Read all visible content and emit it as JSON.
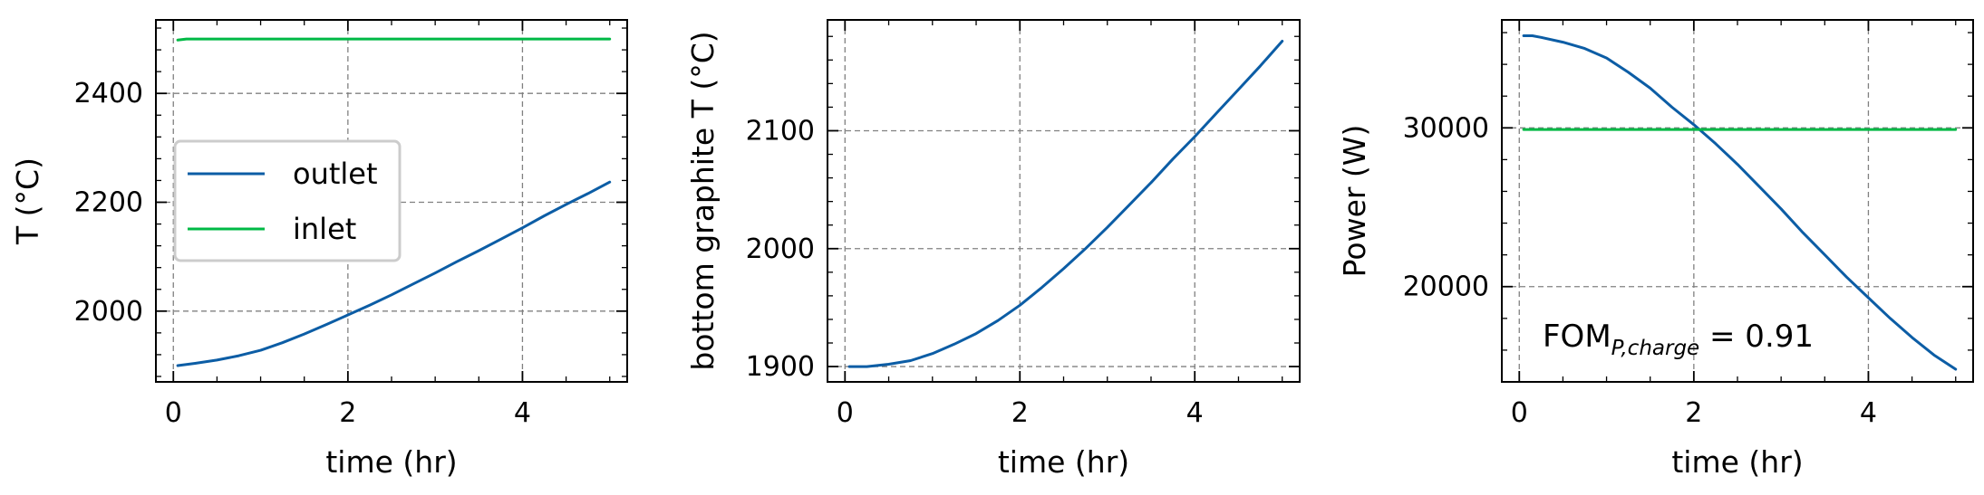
{
  "chart_data": [
    {
      "type": "line",
      "title": "",
      "xlabel": "time (hr)",
      "ylabel": "T (°C)",
      "xlim": [
        -0.2,
        5.2
      ],
      "ylim": [
        1870,
        2535
      ],
      "xticks": [
        0,
        2,
        4
      ],
      "yticks": [
        2000,
        2200,
        2400
      ],
      "grid": true,
      "legend": "center-left",
      "series": [
        {
          "name": "outlet",
          "color": "#0c5da5",
          "x": [
            0.05,
            0.25,
            0.5,
            0.75,
            1.0,
            1.25,
            1.5,
            1.75,
            2.0,
            2.25,
            2.5,
            2.75,
            3.0,
            3.25,
            3.5,
            3.75,
            4.0,
            4.25,
            4.5,
            4.75,
            5.0
          ],
          "y": [
            1900,
            1904,
            1910,
            1918,
            1928,
            1942,
            1958,
            1975,
            1993,
            2011,
            2030,
            2050,
            2070,
            2091,
            2111,
            2132,
            2153,
            2175,
            2196,
            2216,
            2237
          ]
        },
        {
          "name": "inlet",
          "color": "#00b945",
          "x": [
            0.05,
            0.15,
            5.0
          ],
          "y": [
            2498,
            2500,
            2500
          ]
        }
      ]
    },
    {
      "type": "line",
      "title": "",
      "xlabel": "time (hr)",
      "ylabel": "bottom graphite T (°C)",
      "xlim": [
        -0.2,
        5.2
      ],
      "ylim": [
        1887,
        2194
      ],
      "xticks": [
        0,
        2,
        4
      ],
      "yticks": [
        1900,
        2000,
        2100
      ],
      "grid": true,
      "series": [
        {
          "color": "#0c5da5",
          "x": [
            0.05,
            0.25,
            0.5,
            0.75,
            1.0,
            1.25,
            1.5,
            1.75,
            2.0,
            2.25,
            2.5,
            2.75,
            3.0,
            3.25,
            3.5,
            3.75,
            4.0,
            4.25,
            4.5,
            4.75,
            5.0
          ],
          "y": [
            1900,
            1900,
            1902,
            1905,
            1911,
            1919,
            1928,
            1939,
            1952,
            1967,
            1983,
            2000,
            2018,
            2037,
            2056,
            2076,
            2095,
            2115,
            2135,
            2155,
            2176
          ]
        }
      ]
    },
    {
      "type": "line",
      "title": "",
      "xlabel": "time (hr)",
      "ylabel": "Power (W)",
      "xlim": [
        -0.2,
        5.2
      ],
      "ylim": [
        14000,
        36800
      ],
      "xticks": [
        0,
        2,
        4
      ],
      "yticks": [
        20000,
        30000
      ],
      "grid": true,
      "annotation": {
        "main": "FOM",
        "subscript": "P,charge",
        "value": "= 0.91"
      },
      "series": [
        {
          "color": "#0c5da5",
          "x": [
            0.05,
            0.15,
            0.25,
            0.5,
            0.75,
            1.0,
            1.25,
            1.5,
            1.75,
            2.0,
            2.25,
            2.5,
            2.75,
            3.0,
            3.25,
            3.5,
            3.75,
            4.0,
            4.25,
            4.5,
            4.75,
            5.0
          ],
          "y": [
            35800,
            35800,
            35700,
            35400,
            35000,
            34400,
            33500,
            32500,
            31300,
            30200,
            29000,
            27700,
            26300,
            24900,
            23400,
            22000,
            20600,
            19300,
            18000,
            16800,
            15700,
            14800
          ]
        },
        {
          "color": "#00b945",
          "x": [
            0.05,
            5.0
          ],
          "y": [
            29900,
            29900
          ]
        }
      ]
    }
  ]
}
